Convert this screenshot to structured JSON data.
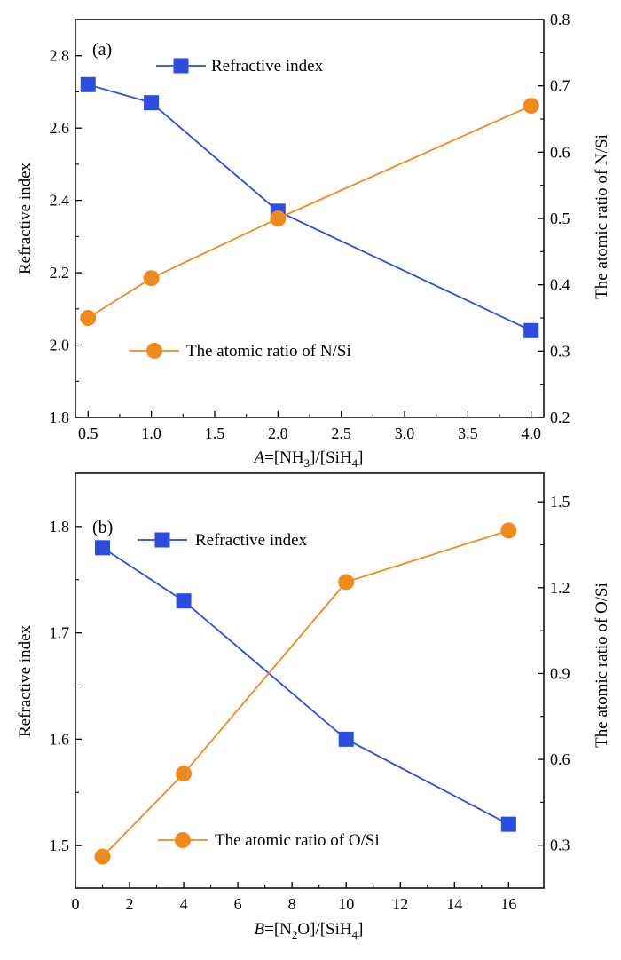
{
  "chart_data": [
    {
      "type": "line",
      "panel_label": "(a)",
      "xlabel": {
        "italic": "A",
        "rest": "=[NH",
        "sub1": "3",
        "mid": "]/[SiH",
        "sub2": "4",
        "end": "]"
      },
      "ylabel_left": "Refractive index",
      "ylabel_right": "The atomic ratio of N/Si",
      "xlim": [
        0.4,
        4.1
      ],
      "x_ticks": [
        "0.5",
        "1.0",
        "1.5",
        "2.0",
        "2.5",
        "3.0",
        "3.5",
        "4.0"
      ],
      "ylim_left": [
        1.8,
        2.9
      ],
      "y_ticks_left": [
        "1.8",
        "2.0",
        "2.2",
        "2.4",
        "2.6",
        "2.8"
      ],
      "ylim_right": [
        0.2,
        0.8
      ],
      "y_ticks_right": [
        "0.2",
        "0.3",
        "0.4",
        "0.5",
        "0.6",
        "0.7",
        "0.8"
      ],
      "series": [
        {
          "name": "Refractive index",
          "axis": "left",
          "marker": "square",
          "color": "#2b4de0",
          "x": [
            0.5,
            1.0,
            2.0,
            4.0
          ],
          "y": [
            2.72,
            2.67,
            2.37,
            2.04
          ]
        },
        {
          "name": "The atomic ratio of N/Si",
          "axis": "right",
          "marker": "circle",
          "color": "#f08a1c",
          "x": [
            0.5,
            1.0,
            2.0,
            4.0
          ],
          "y": [
            0.35,
            0.41,
            0.5,
            0.67
          ]
        }
      ],
      "legend": [
        "top-center: Refractive index",
        "lower-center: The atomic ratio of N/Si"
      ]
    },
    {
      "type": "line",
      "panel_label": "(b)",
      "xlabel": {
        "italic": "B",
        "rest": "=[N",
        "sub1": "2",
        "mid": "O]/[SiH",
        "sub2": "4",
        "end": "]"
      },
      "ylabel_left": "Refractive index",
      "ylabel_right": "The atomic ratio of O/Si",
      "xlim": [
        0,
        17.3
      ],
      "x_ticks": [
        "0",
        "2",
        "4",
        "6",
        "8",
        "10",
        "12",
        "14",
        "16"
      ],
      "ylim_left": [
        1.46,
        1.85
      ],
      "y_ticks_left": [
        "1.5",
        "1.6",
        "1.7",
        "1.8"
      ],
      "ylim_right": [
        0.15,
        1.6
      ],
      "y_ticks_right": [
        "0.3",
        "0.6",
        "0.9",
        "1.2",
        "1.5"
      ],
      "series": [
        {
          "name": "Refractive index",
          "axis": "left",
          "marker": "square",
          "color": "#2b4de0",
          "x": [
            1,
            4,
            10,
            16
          ],
          "y": [
            1.78,
            1.73,
            1.6,
            1.52
          ]
        },
        {
          "name": "The atomic ratio of O/Si",
          "axis": "right",
          "marker": "circle",
          "color": "#f08a1c",
          "x": [
            1,
            4,
            10,
            16
          ],
          "y": [
            0.26,
            0.55,
            1.22,
            1.4
          ]
        }
      ],
      "legend": [
        "top-left: Refractive index",
        "lower-center: The atomic ratio of O/Si"
      ]
    }
  ]
}
